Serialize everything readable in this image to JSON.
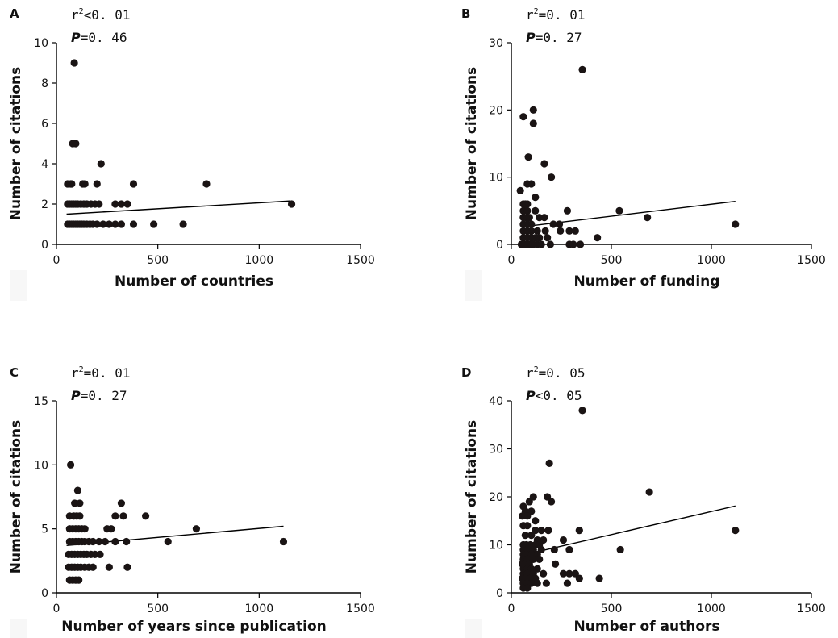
{
  "chart_data": [
    {
      "type": "scatter",
      "panel": "A",
      "r2_text": "r²<0. 01",
      "r2_prefix": "r",
      "r2_sup": "2",
      "r2_value": "<0. 01",
      "p_label": "P",
      "p_value": "=0. 46",
      "xlabel": "Number of countries",
      "ylabel": "Number of citations",
      "xlim": [
        0,
        1500
      ],
      "ylim": [
        0,
        10
      ],
      "xticks": [
        0,
        500,
        1000,
        1500
      ],
      "yticks": [
        0,
        2,
        4,
        6,
        8,
        10
      ],
      "trend": {
        "x": [
          50,
          1150
        ],
        "y": [
          1.5,
          2.15
        ]
      },
      "points": [
        [
          88,
          9
        ],
        [
          80,
          5
        ],
        [
          95,
          5
        ],
        [
          220,
          4
        ],
        [
          740,
          3
        ],
        [
          380,
          3
        ],
        [
          55,
          3
        ],
        [
          70,
          3
        ],
        [
          75,
          3
        ],
        [
          130,
          3
        ],
        [
          140,
          3
        ],
        [
          200,
          3
        ],
        [
          1160,
          2
        ],
        [
          55,
          2
        ],
        [
          65,
          2
        ],
        [
          75,
          2
        ],
        [
          85,
          2
        ],
        [
          95,
          2
        ],
        [
          105,
          2
        ],
        [
          120,
          2
        ],
        [
          135,
          2
        ],
        [
          150,
          2
        ],
        [
          170,
          2
        ],
        [
          190,
          2
        ],
        [
          210,
          2
        ],
        [
          290,
          2
        ],
        [
          320,
          2
        ],
        [
          350,
          2
        ],
        [
          55,
          1
        ],
        [
          65,
          1
        ],
        [
          75,
          1
        ],
        [
          85,
          1
        ],
        [
          95,
          1
        ],
        [
          105,
          1
        ],
        [
          115,
          1
        ],
        [
          125,
          1
        ],
        [
          135,
          1
        ],
        [
          150,
          1
        ],
        [
          165,
          1
        ],
        [
          180,
          1
        ],
        [
          200,
          1
        ],
        [
          230,
          1
        ],
        [
          260,
          1
        ],
        [
          290,
          1
        ],
        [
          320,
          1
        ],
        [
          380,
          1
        ],
        [
          480,
          1
        ],
        [
          625,
          1
        ]
      ]
    },
    {
      "type": "scatter",
      "panel": "B",
      "r2_prefix": "r",
      "r2_sup": "2",
      "r2_value": "=0. 01",
      "p_label": "P",
      "p_value": "=0. 27",
      "xlabel": "Number of funding",
      "ylabel": "Number of citations",
      "xlim": [
        0,
        1500
      ],
      "ylim": [
        0,
        30
      ],
      "xticks": [
        0,
        500,
        1000,
        1500
      ],
      "yticks": [
        0,
        10,
        20,
        30
      ],
      "trend": {
        "x": [
          50,
          1120
        ],
        "y": [
          2.6,
          6.4
        ]
      },
      "points": [
        [
          355,
          26
        ],
        [
          110,
          20
        ],
        [
          60,
          19
        ],
        [
          110,
          18
        ],
        [
          85,
          13
        ],
        [
          165,
          12
        ],
        [
          200,
          10
        ],
        [
          80,
          9
        ],
        [
          100,
          9
        ],
        [
          45,
          8
        ],
        [
          120,
          7
        ],
        [
          60,
          6
        ],
        [
          70,
          6
        ],
        [
          80,
          6
        ],
        [
          280,
          5
        ],
        [
          540,
          5
        ],
        [
          60,
          5
        ],
        [
          80,
          5
        ],
        [
          120,
          5
        ],
        [
          60,
          4
        ],
        [
          75,
          4
        ],
        [
          90,
          4
        ],
        [
          140,
          4
        ],
        [
          165,
          4
        ],
        [
          680,
          4
        ],
        [
          1120,
          3
        ],
        [
          60,
          3
        ],
        [
          80,
          3
        ],
        [
          100,
          3
        ],
        [
          210,
          3
        ],
        [
          240,
          3
        ],
        [
          60,
          2
        ],
        [
          80,
          2
        ],
        [
          100,
          2
        ],
        [
          130,
          2
        ],
        [
          170,
          2
        ],
        [
          290,
          2
        ],
        [
          320,
          2
        ],
        [
          245,
          2
        ],
        [
          60,
          1
        ],
        [
          80,
          1
        ],
        [
          100,
          1
        ],
        [
          120,
          1
        ],
        [
          140,
          1
        ],
        [
          180,
          1
        ],
        [
          430,
          1
        ],
        [
          50,
          0
        ],
        [
          65,
          0
        ],
        [
          80,
          0
        ],
        [
          95,
          0
        ],
        [
          110,
          0
        ],
        [
          130,
          0
        ],
        [
          150,
          0
        ],
        [
          195,
          0
        ],
        [
          290,
          0
        ],
        [
          310,
          0
        ],
        [
          345,
          0
        ]
      ]
    },
    {
      "type": "scatter",
      "panel": "C",
      "r2_prefix": "r",
      "r2_sup": "2",
      "r2_value": "=0. 01",
      "p_label": "P",
      "p_value": "=0. 27",
      "xlabel": "Number of years since publication",
      "ylabel": "Number of citations",
      "xlim": [
        0,
        1500
      ],
      "ylim": [
        0,
        15
      ],
      "xticks": [
        0,
        500,
        1000,
        1500
      ],
      "yticks": [
        0,
        5,
        10,
        15
      ],
      "trend": {
        "x": [
          50,
          1120
        ],
        "y": [
          3.7,
          5.2
        ]
      },
      "points": [
        [
          70,
          10
        ],
        [
          105,
          8
        ],
        [
          90,
          7
        ],
        [
          115,
          7
        ],
        [
          320,
          7
        ],
        [
          65,
          6
        ],
        [
          85,
          6
        ],
        [
          100,
          6
        ],
        [
          115,
          6
        ],
        [
          290,
          6
        ],
        [
          330,
          6
        ],
        [
          440,
          6
        ],
        [
          65,
          5
        ],
        [
          80,
          5
        ],
        [
          95,
          5
        ],
        [
          110,
          5
        ],
        [
          125,
          5
        ],
        [
          140,
          5
        ],
        [
          250,
          5
        ],
        [
          270,
          5
        ],
        [
          690,
          5
        ],
        [
          65,
          4
        ],
        [
          80,
          4
        ],
        [
          95,
          4
        ],
        [
          110,
          4
        ],
        [
          125,
          4
        ],
        [
          140,
          4
        ],
        [
          160,
          4
        ],
        [
          180,
          4
        ],
        [
          210,
          4
        ],
        [
          240,
          4
        ],
        [
          290,
          4
        ],
        [
          345,
          4
        ],
        [
          550,
          4
        ],
        [
          1120,
          4
        ],
        [
          60,
          3
        ],
        [
          75,
          3
        ],
        [
          90,
          3
        ],
        [
          105,
          3
        ],
        [
          120,
          3
        ],
        [
          135,
          3
        ],
        [
          150,
          3
        ],
        [
          170,
          3
        ],
        [
          190,
          3
        ],
        [
          215,
          3
        ],
        [
          60,
          2
        ],
        [
          75,
          2
        ],
        [
          90,
          2
        ],
        [
          105,
          2
        ],
        [
          120,
          2
        ],
        [
          140,
          2
        ],
        [
          160,
          2
        ],
        [
          180,
          2
        ],
        [
          260,
          2
        ],
        [
          350,
          2
        ],
        [
          65,
          1
        ],
        [
          80,
          1
        ],
        [
          95,
          1
        ],
        [
          110,
          1
        ]
      ]
    },
    {
      "type": "scatter",
      "panel": "D",
      "r2_prefix": "r",
      "r2_sup": "2",
      "r2_value": "=0. 05",
      "p_label": "P",
      "p_value": "<0. 05",
      "xlabel": "Number of authors",
      "ylabel": "Number of citations",
      "xlim": [
        0,
        1500
      ],
      "ylim": [
        0,
        40
      ],
      "xticks": [
        0,
        500,
        1000,
        1500
      ],
      "yticks": [
        0,
        10,
        20,
        30,
        40
      ],
      "trend": {
        "x": [
          50,
          1120
        ],
        "y": [
          7.8,
          18.1
        ]
      },
      "points": [
        [
          355,
          38
        ],
        [
          190,
          27
        ],
        [
          690,
          21
        ],
        [
          110,
          20
        ],
        [
          180,
          20
        ],
        [
          200,
          19
        ],
        [
          60,
          18
        ],
        [
          90,
          19
        ],
        [
          70,
          17
        ],
        [
          100,
          17
        ],
        [
          55,
          16
        ],
        [
          80,
          16
        ],
        [
          120,
          15
        ],
        [
          60,
          14
        ],
        [
          80,
          14
        ],
        [
          120,
          13
        ],
        [
          150,
          13
        ],
        [
          185,
          13
        ],
        [
          340,
          13
        ],
        [
          1120,
          13
        ],
        [
          70,
          12
        ],
        [
          100,
          12
        ],
        [
          130,
          11
        ],
        [
          160,
          11
        ],
        [
          260,
          11
        ],
        [
          60,
          10
        ],
        [
          75,
          10
        ],
        [
          95,
          10
        ],
        [
          120,
          10
        ],
        [
          140,
          10
        ],
        [
          60,
          9
        ],
        [
          80,
          9
        ],
        [
          110,
          9
        ],
        [
          150,
          9
        ],
        [
          215,
          9
        ],
        [
          290,
          9
        ],
        [
          545,
          9
        ],
        [
          60,
          8
        ],
        [
          75,
          8
        ],
        [
          100,
          8
        ],
        [
          130,
          8
        ],
        [
          60,
          7
        ],
        [
          80,
          7
        ],
        [
          110,
          7
        ],
        [
          140,
          7
        ],
        [
          55,
          6
        ],
        [
          70,
          6
        ],
        [
          90,
          6
        ],
        [
          220,
          6
        ],
        [
          60,
          5
        ],
        [
          80,
          5
        ],
        [
          100,
          5
        ],
        [
          130,
          5
        ],
        [
          60,
          4
        ],
        [
          80,
          4
        ],
        [
          110,
          4
        ],
        [
          160,
          4
        ],
        [
          260,
          4
        ],
        [
          290,
          4
        ],
        [
          320,
          4
        ],
        [
          55,
          3
        ],
        [
          75,
          3
        ],
        [
          95,
          3
        ],
        [
          120,
          3
        ],
        [
          340,
          3
        ],
        [
          440,
          3
        ],
        [
          60,
          2
        ],
        [
          80,
          2
        ],
        [
          100,
          2
        ],
        [
          130,
          2
        ],
        [
          175,
          2
        ],
        [
          280,
          2
        ],
        [
          60,
          1
        ],
        [
          80,
          1
        ]
      ]
    }
  ]
}
